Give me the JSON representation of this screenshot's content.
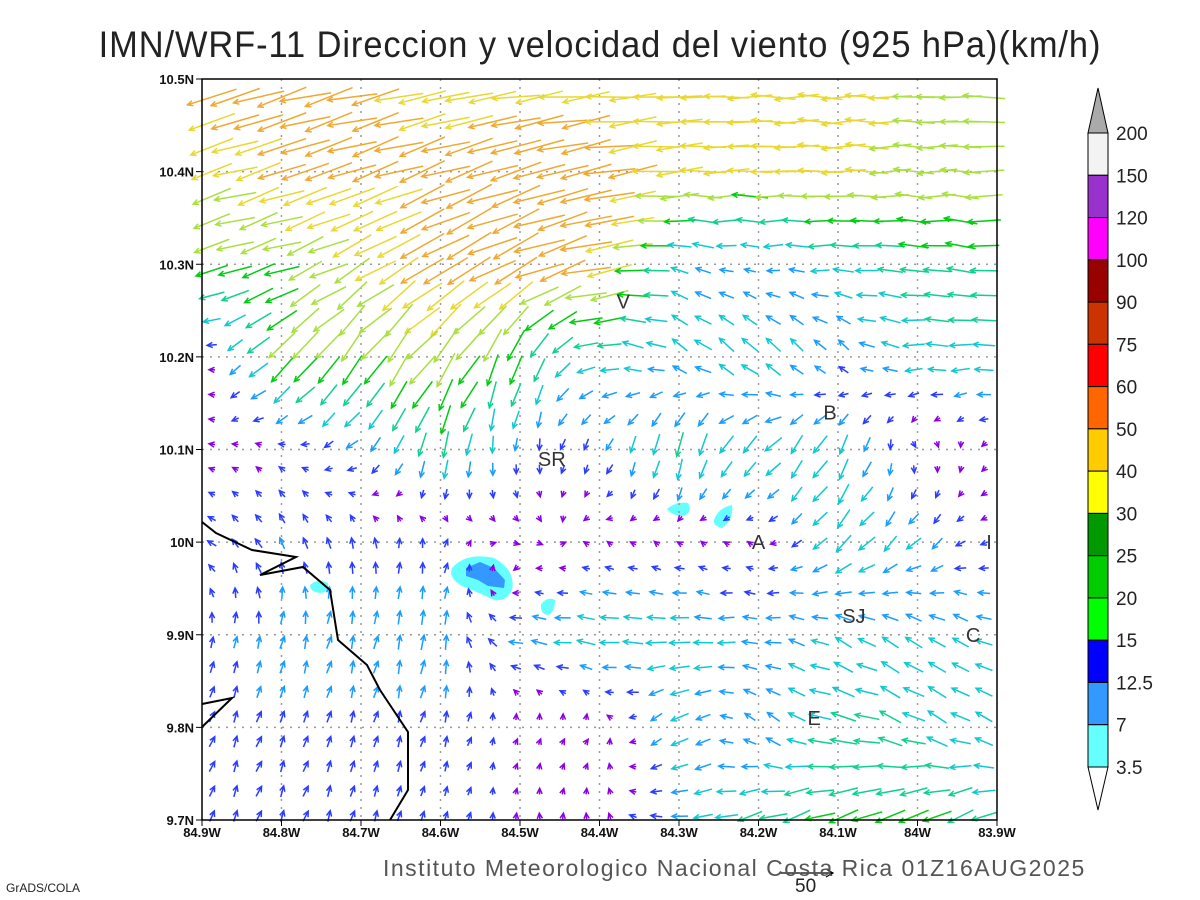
{
  "title": "IMN/WRF-11 Direccion y velocidad del viento (925 hPa)(km/h)",
  "footer": "Instituto Meteorologico Nacional Costa Rica 01Z16AUG2025",
  "credit": "GrADS/COLA",
  "reference_vector": {
    "label": "50",
    "speed": 50
  },
  "chart_data": {
    "type": "vector-field",
    "title": "IMN/WRF-11 Direccion y velocidad del viento (925 hPa)(km/h)",
    "x_ticks": [
      "84.9W",
      "84.8W",
      "84.7W",
      "84.6W",
      "84.5W",
      "84.4W",
      "84.3W",
      "84.2W",
      "84.1W",
      "84W",
      "83.9W"
    ],
    "y_ticks": [
      "10.5N",
      "10.4N",
      "10.3N",
      "10.2N",
      "10.1N",
      "10N",
      "9.9N",
      "9.8N",
      "9.7N"
    ],
    "xlim": [
      -84.9,
      -83.9
    ],
    "ylim": [
      9.7,
      10.5
    ],
    "grid": true,
    "cities": [
      {
        "label": "V",
        "lon": -84.37,
        "lat": 10.26
      },
      {
        "label": "B",
        "lon": -84.11,
        "lat": 10.14
      },
      {
        "label": "SR",
        "lon": -84.46,
        "lat": 10.09
      },
      {
        "label": "A",
        "lon": -84.2,
        "lat": 10.0
      },
      {
        "label": "SJ",
        "lon": -84.08,
        "lat": 9.92
      },
      {
        "label": "C",
        "lon": -83.93,
        "lat": 9.9
      },
      {
        "label": "E",
        "lon": -84.13,
        "lat": 9.81
      },
      {
        "label": "I",
        "lon": -83.91,
        "lat": 10.0
      }
    ],
    "wind_field": {
      "units": "km/h",
      "lons": [
        -84.9,
        -84.8,
        -84.7,
        -84.6,
        -84.5,
        -84.4,
        -84.3,
        -84.2,
        -84.1,
        -84.0,
        -83.9
      ],
      "lats": [
        10.5,
        10.4,
        10.3,
        10.2,
        10.1,
        10.0,
        9.9,
        9.8,
        9.7
      ],
      "u": [
        [
          -48,
          -48,
          -46,
          -44,
          -44,
          -44,
          -42,
          -42,
          -42,
          -40,
          -40
        ],
        [
          -38,
          -44,
          -44,
          -44,
          -48,
          -48,
          -44,
          -42,
          -42,
          -38,
          -38
        ],
        [
          -32,
          -32,
          -36,
          -42,
          -44,
          -48,
          -16,
          -10,
          -20,
          -26,
          -26
        ],
        [
          -3,
          -24,
          -20,
          -24,
          -10,
          -20,
          -15,
          -15,
          -8,
          -20,
          -20
        ],
        [
          -3,
          -5,
          -10,
          -5,
          0,
          -5,
          -5,
          -15,
          -10,
          5,
          -3
        ],
        [
          -8,
          -5,
          -2,
          2,
          5,
          -3,
          -4,
          -3,
          -15,
          -12,
          -5
        ],
        [
          2,
          3,
          3,
          2,
          -15,
          -20,
          -20,
          -15,
          -15,
          -15,
          -15
        ],
        [
          4,
          4,
          3,
          3,
          2,
          3,
          -15,
          -8,
          -25,
          -20,
          -15
        ],
        [
          4,
          4,
          3,
          3,
          0,
          0,
          -15,
          -25,
          -28,
          -28,
          -22
        ]
      ],
      "v": [
        [
          -16,
          -14,
          -10,
          -8,
          -5,
          -3,
          -1,
          0,
          0,
          0,
          0
        ],
        [
          -10,
          -15,
          -15,
          -15,
          -15,
          -10,
          -3,
          0,
          0,
          0,
          0
        ],
        [
          -10,
          -10,
          -20,
          -25,
          -20,
          -10,
          5,
          0,
          0,
          3,
          3
        ],
        [
          3,
          -25,
          -30,
          -30,
          -30,
          0,
          10,
          15,
          10,
          0,
          0
        ],
        [
          0,
          3,
          -8,
          -25,
          -10,
          -10,
          -25,
          -15,
          -20,
          -5,
          -3
        ],
        [
          5,
          10,
          10,
          8,
          -2,
          2,
          3,
          2,
          -15,
          -12,
          0
        ],
        [
          10,
          12,
          12,
          15,
          2,
          2,
          0,
          0,
          8,
          10,
          5
        ],
        [
          10,
          10,
          10,
          10,
          5,
          3,
          -10,
          10,
          5,
          10,
          8
        ],
        [
          10,
          10,
          10,
          8,
          5,
          5,
          0,
          -8,
          -10,
          -12,
          -10
        ]
      ]
    },
    "shading": {
      "colorbar_labels": [
        "200",
        "150",
        "120",
        "100",
        "90",
        "75",
        "60",
        "50",
        "40",
        "30",
        "25",
        "20",
        "15",
        "12.5",
        "7",
        "3.5"
      ],
      "colorbar_colors": [
        "#f3f3f3",
        "#9932cc",
        "#ff00ff",
        "#990000",
        "#cc3300",
        "#ff0000",
        "#ff6600",
        "#ffcc00",
        "#ffff00",
        "#009900",
        "#00cc00",
        "#00ff00",
        "#0000ff",
        "#3399ff",
        "#66ffff"
      ],
      "above_color": "#aaaaaa",
      "below_color": "#ffffff"
    },
    "vector_colors": [
      [
        0,
        "#8a00e6"
      ],
      [
        6,
        "#2a3cff"
      ],
      [
        11,
        "#1a9cff"
      ],
      [
        16,
        "#10c8d0"
      ],
      [
        22,
        "#10d090"
      ],
      [
        28,
        "#00cc10"
      ],
      [
        34,
        "#a8e040"
      ],
      [
        40,
        "#e8d830"
      ],
      [
        46,
        "#f0a830"
      ],
      [
        52,
        "#ff7a30"
      ],
      [
        60,
        "#ff3040"
      ]
    ]
  }
}
